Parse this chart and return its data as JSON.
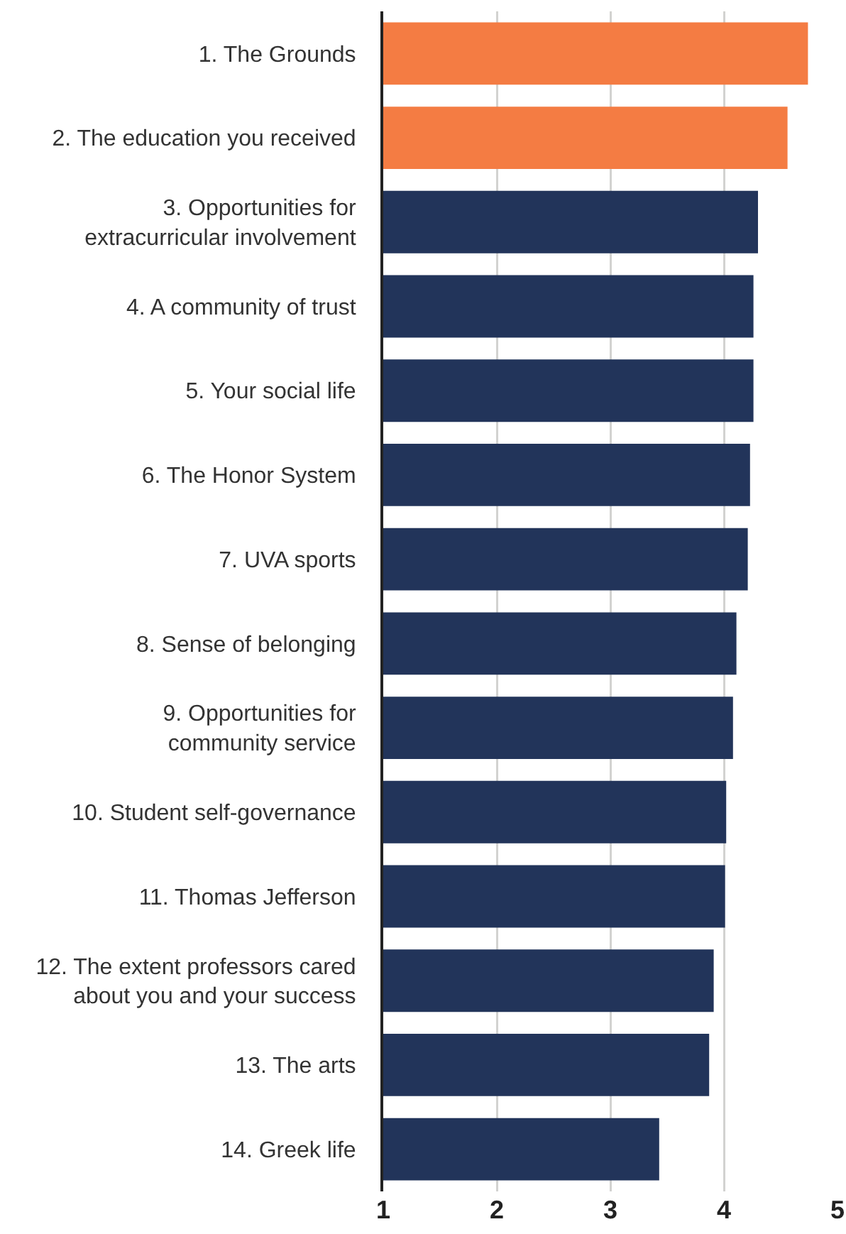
{
  "chart_data": {
    "type": "bar",
    "orientation": "horizontal",
    "categories": [
      "1. The Grounds",
      "2. The education you received",
      "3. Opportunities for extracurricular involvement",
      "4. A community of trust",
      "5. Your social life",
      "6. The Honor System",
      "7. UVA sports",
      "8. Sense of belonging",
      "9. Opportunities for community service",
      "10. Student self-governance",
      "11. Thomas Jefferson",
      "12. The extent professors cared about you and your success",
      "13. The arts",
      "14. Greek life"
    ],
    "values": [
      4.74,
      4.56,
      4.3,
      4.26,
      4.26,
      4.23,
      4.21,
      4.11,
      4.08,
      4.02,
      4.01,
      3.91,
      3.87,
      3.43
    ],
    "colors": [
      "#f47c43",
      "#f47c43",
      "#22345a",
      "#22345a",
      "#22345a",
      "#22345a",
      "#22345a",
      "#22345a",
      "#22345a",
      "#22345a",
      "#22345a",
      "#22345a",
      "#22345a",
      "#22345a"
    ],
    "xlim": [
      1,
      5
    ],
    "xticks": [
      1,
      2,
      3,
      4,
      5
    ],
    "grid": "x"
  }
}
